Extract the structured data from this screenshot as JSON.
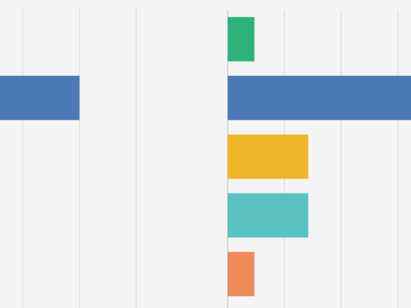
{
  "charts": [
    {
      "type": "bar",
      "orientation": "horizontal",
      "categories": [
        null,
        null,
        null,
        null,
        null
      ],
      "values": [
        null,
        1.4,
        null,
        null,
        null
      ],
      "colors": [
        "#2db37a",
        "#4a7ab5",
        "#f0b52a",
        "#5bc2c4",
        "#ef8a5b"
      ],
      "xlim": [
        0,
        3.7
      ],
      "xticks": [
        0.4,
        1.4,
        2.4
      ],
      "grid": true
    },
    {
      "type": "bar",
      "orientation": "horizontal",
      "categories": [
        null,
        null,
        null,
        null,
        null
      ],
      "values": [
        0.47,
        3.3,
        1.42,
        1.42,
        0.47
      ],
      "colors": [
        "#2db37a",
        "#4a7ab5",
        "#f0b52a",
        "#5bc2c4",
        "#ef8a5b"
      ],
      "xlim": [
        0,
        3.24
      ],
      "xticks": [
        0,
        1,
        2,
        3
      ],
      "grid": true
    }
  ]
}
